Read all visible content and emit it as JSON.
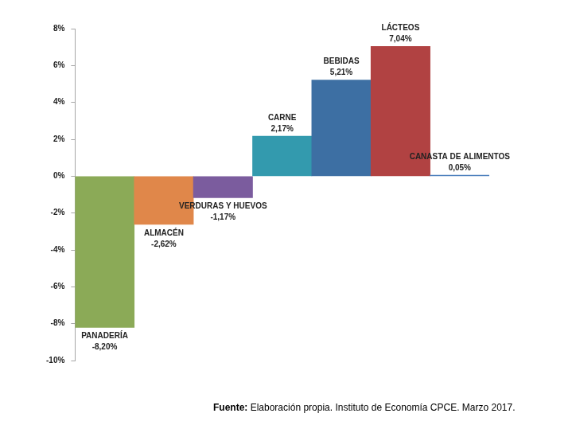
{
  "chart_data": {
    "type": "bar",
    "categories": [
      "PANADERÍA",
      "ALMACÉN",
      "VERDURAS Y HUEVOS",
      "CARNE",
      "BEBIDAS",
      "LÁCTEOS",
      "CANASTA DE ALIMENTOS"
    ],
    "values": [
      -8.2,
      -2.62,
      -1.17,
      2.17,
      5.21,
      7.04,
      0.05
    ],
    "value_labels": [
      "-8,20%",
      "-2,62%",
      "-1,17%",
      "2,17%",
      "5,21%",
      "7,04%",
      "0,05%"
    ],
    "colors": [
      "#8baa57",
      "#e0874a",
      "#7b5c9e",
      "#339aae",
      "#3d6fa3",
      "#b14242",
      "#4f81bd"
    ],
    "ylim": [
      -10,
      8
    ],
    "yticks": [
      {
        "value": -10,
        "label": "-10%"
      },
      {
        "value": -8,
        "label": "-8%"
      },
      {
        "value": -6,
        "label": "-6%"
      },
      {
        "value": -4,
        "label": "-4%"
      },
      {
        "value": -2,
        "label": "-2%"
      },
      {
        "value": 0,
        "label": "0%"
      },
      {
        "value": 2,
        "label": "2%"
      },
      {
        "value": 4,
        "label": "4%"
      },
      {
        "value": 6,
        "label": "6%"
      },
      {
        "value": 8,
        "label": "8%"
      }
    ],
    "grid": false,
    "data_labels": true,
    "tick_labels": "y",
    "source": "Fuente: Elaboración propia. Instituto de Economía CPCE. Marzo 2017."
  }
}
